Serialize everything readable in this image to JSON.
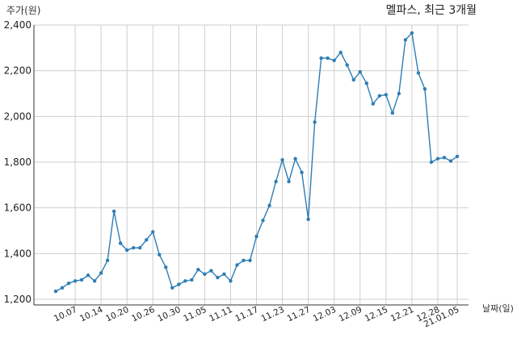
{
  "chart_data": {
    "type": "line",
    "title": "멜파스, 최근 3개월",
    "ylabel": "주가(원)",
    "xlabel": "날짜(일)",
    "ylim": [
      1200,
      2400
    ],
    "yticks": [
      1200,
      1400,
      1600,
      1800,
      2000,
      2200,
      2400
    ],
    "ytick_labels": [
      "1,200",
      "1,400",
      "1,600",
      "1,800",
      "2,000",
      "2,200",
      "2,400"
    ],
    "grid": true,
    "line_color": "#2e7db5",
    "series": [
      {
        "values": [
          1235,
          1250,
          1270,
          1280,
          1285,
          1305,
          1280,
          1315,
          1370,
          1585,
          1445,
          1415,
          1425,
          1425,
          1460,
          1495,
          1395,
          1340,
          1250,
          1265,
          1280,
          1285,
          1330,
          1310,
          1325,
          1295,
          1310,
          1280,
          1350,
          1370,
          1370,
          1475,
          1545,
          1610,
          1715,
          1810,
          1715,
          1815,
          1755,
          1550,
          1975,
          2255,
          2255,
          2245,
          2280,
          2225,
          2160,
          2195,
          2145,
          2055,
          2090,
          2095,
          2015,
          2100,
          2335,
          2365,
          2190,
          2120,
          1800,
          1815,
          1820,
          1805,
          1825
        ]
      }
    ],
    "xticks": [
      {
        "label": "10.07",
        "index": 3
      },
      {
        "label": "10.14",
        "index": 7
      },
      {
        "label": "10.20",
        "index": 11
      },
      {
        "label": "10.26",
        "index": 15
      },
      {
        "label": "10.30",
        "index": 19
      },
      {
        "label": "11.05",
        "index": 23
      },
      {
        "label": "11.11",
        "index": 27
      },
      {
        "label": "11.17",
        "index": 31
      },
      {
        "label": "11.23",
        "index": 35
      },
      {
        "label": "11.27",
        "index": 39
      },
      {
        "label": "12.03",
        "index": 43
      },
      {
        "label": "12.09",
        "index": 47
      },
      {
        "label": "12.15",
        "index": 51
      },
      {
        "label": "12.21",
        "index": 55
      },
      {
        "label": "12.28",
        "index": 59
      },
      {
        "label": "21.01.05",
        "index": 62
      }
    ]
  }
}
